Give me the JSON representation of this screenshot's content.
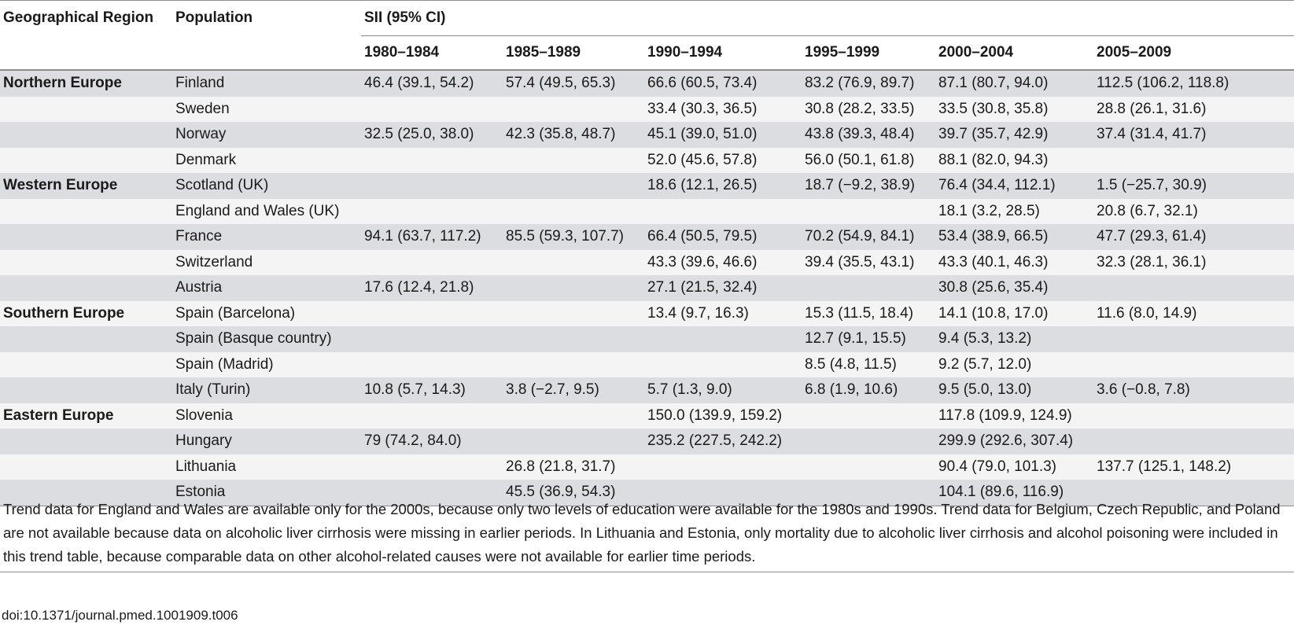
{
  "header": {
    "geo_region": "Geographical Region",
    "population": "Population",
    "sii": "SII (95% CI)",
    "periods": [
      "1980–1984",
      "1985–1989",
      "1990–1994",
      "1995–1999",
      "2000–2004",
      "2005–2009"
    ]
  },
  "rows": [
    {
      "region": "Northern Europe",
      "population": "Finland",
      "values": [
        "46.4 (39.1, 54.2)",
        "57.4 (49.5, 65.3)",
        "66.6 (60.5, 73.4)",
        "83.2 (76.9, 89.7)",
        "87.1 (80.7, 94.0)",
        "112.5 (106.2, 118.8)"
      ]
    },
    {
      "region": "",
      "population": "Sweden",
      "values": [
        "",
        "",
        "33.4 (30.3, 36.5)",
        "30.8 (28.2, 33.5)",
        "33.5 (30.8, 35.8)",
        "28.8 (26.1, 31.6)"
      ]
    },
    {
      "region": "",
      "population": "Norway",
      "values": [
        "32.5 (25.0, 38.0)",
        "42.3 (35.8, 48.7)",
        "45.1 (39.0, 51.0)",
        "43.8 (39.3, 48.4)",
        "39.7 (35.7, 42.9)",
        "37.4 (31.4, 41.7)"
      ]
    },
    {
      "region": "",
      "population": "Denmark",
      "values": [
        "",
        "",
        "52.0 (45.6, 57.8)",
        "56.0 (50.1, 61.8)",
        "88.1 (82.0, 94.3)",
        ""
      ]
    },
    {
      "region": "Western Europe",
      "population": "Scotland (UK)",
      "values": [
        "",
        "",
        "18.6 (12.1, 26.5)",
        "18.7 (−9.2, 38.9)",
        "76.4 (34.4, 112.1)",
        "1.5 (−25.7, 30.9)"
      ]
    },
    {
      "region": "",
      "population": "England and Wales (UK)",
      "values": [
        "",
        "",
        "",
        "",
        "18.1 (3.2, 28.5)",
        "20.8 (6.7, 32.1)"
      ]
    },
    {
      "region": "",
      "population": "France",
      "values": [
        "94.1 (63.7, 117.2)",
        "85.5 (59.3, 107.7)",
        "66.4 (50.5, 79.5)",
        "70.2 (54.9, 84.1)",
        "53.4 (38.9, 66.5)",
        "47.7 (29.3, 61.4)"
      ]
    },
    {
      "region": "",
      "population": "Switzerland",
      "values": [
        "",
        "",
        "43.3 (39.6, 46.6)",
        "39.4 (35.5, 43.1)",
        "43.3 (40.1, 46.3)",
        "32.3 (28.1, 36.1)"
      ]
    },
    {
      "region": "",
      "population": "Austria",
      "values": [
        "17.6 (12.4, 21.8)",
        "",
        "27.1 (21.5, 32.4)",
        "",
        "30.8 (25.6, 35.4)",
        ""
      ]
    },
    {
      "region": "Southern Europe",
      "population": "Spain (Barcelona)",
      "values": [
        "",
        "",
        "13.4 (9.7, 16.3)",
        "15.3 (11.5, 18.4)",
        "14.1 (10.8, 17.0)",
        "11.6 (8.0, 14.9)"
      ]
    },
    {
      "region": "",
      "population": "Spain (Basque country)",
      "values": [
        "",
        "",
        "",
        "12.7 (9.1, 15.5)",
        "9.4 (5.3, 13.2)",
        ""
      ]
    },
    {
      "region": "",
      "population": "Spain (Madrid)",
      "values": [
        "",
        "",
        "",
        "8.5 (4.8, 11.5)",
        "9.2 (5.7, 12.0)",
        ""
      ]
    },
    {
      "region": "",
      "population": "Italy (Turin)",
      "values": [
        "10.8 (5.7, 14.3)",
        "3.8 (−2.7, 9.5)",
        "5.7 (1.3, 9.0)",
        "6.8 (1.9, 10.6)",
        "9.5 (5.0, 13.0)",
        "3.6 (−0.8, 7.8)"
      ]
    },
    {
      "region": "Eastern Europe",
      "population": "Slovenia",
      "values": [
        "",
        "",
        "150.0 (139.9, 159.2)",
        "",
        "117.8 (109.9, 124.9)",
        ""
      ]
    },
    {
      "region": "",
      "population": "Hungary",
      "values": [
        "79 (74.2, 84.0)",
        "",
        "235.2 (227.5, 242.2)",
        "",
        "299.9 (292.6, 307.4)",
        ""
      ]
    },
    {
      "region": "",
      "population": "Lithuania",
      "values": [
        "",
        "26.8 (21.8, 31.7)",
        "",
        "",
        "90.4 (79.0, 101.3)",
        "137.7 (125.1, 148.2)"
      ]
    },
    {
      "region": "",
      "population": "Estonia",
      "values": [
        "",
        "45.5 (36.9, 54.3)",
        "",
        "",
        "104.1 (89.6, 116.9)",
        ""
      ]
    }
  ],
  "footnote": "Trend data for England and Wales are available only for the 2000s, because only two levels of education were available for the 1980s and 1990s. Trend data for Belgium, Czech Republic, and Poland are not available because data on alcoholic liver cirrhosis were missing in earlier periods. In Lithuania and Estonia, only mortality due to alcoholic liver cirrhosis and alcohol poisoning were included in this trend table, because comparable data on other alcohol-related causes were not available for earlier time periods.",
  "doi": "doi:10.1371/journal.pmed.1001909.t006"
}
